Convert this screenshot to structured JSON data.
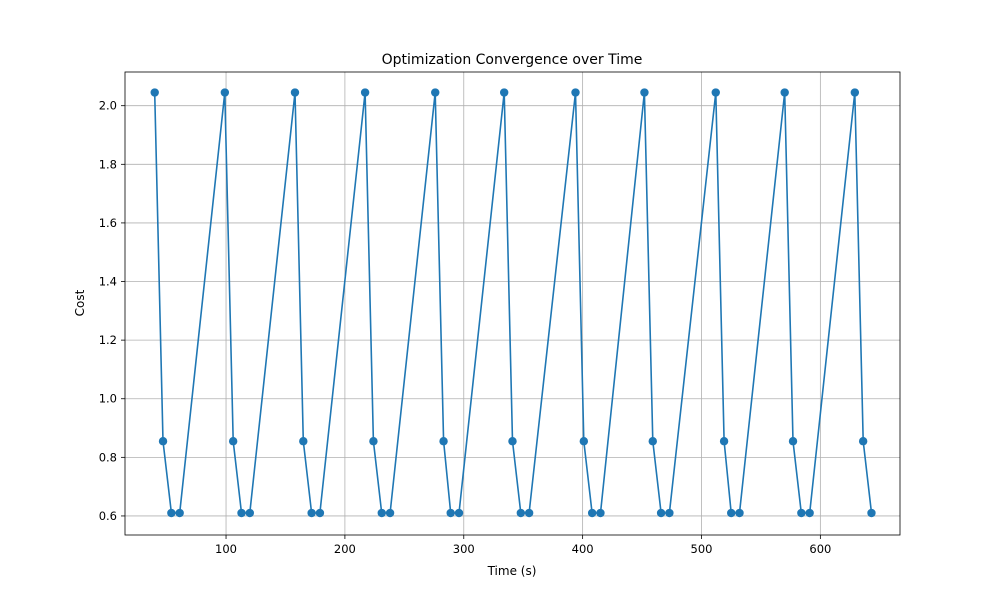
{
  "chart_data": {
    "type": "line",
    "title": "Optimization Convergence over Time",
    "xlabel": "Time (s)",
    "ylabel": "Cost",
    "xlim": [
      15,
      667
    ],
    "ylim": [
      0.535,
      2.115
    ],
    "xticks": [
      100,
      200,
      300,
      400,
      500,
      600
    ],
    "yticks": [
      0.6,
      0.8,
      1.0,
      1.2,
      1.4,
      1.6,
      1.8,
      2.0
    ],
    "grid": true,
    "line_color": "#1f77b4",
    "marker": "circle",
    "x": [
      40,
      47,
      54,
      61,
      99,
      106,
      113,
      120,
      158,
      165,
      172,
      179,
      217,
      224,
      231,
      238,
      276,
      283,
      289,
      296,
      334,
      341,
      348,
      355,
      394,
      401,
      408,
      415,
      452,
      459,
      466,
      473,
      512,
      519,
      525,
      532,
      570,
      577,
      584,
      591,
      629,
      636,
      643
    ],
    "y": [
      2.045,
      0.855,
      0.61,
      0.61,
      2.045,
      0.855,
      0.61,
      0.61,
      2.045,
      0.855,
      0.61,
      0.61,
      2.045,
      0.855,
      0.61,
      0.61,
      2.045,
      0.855,
      0.61,
      0.61,
      2.045,
      0.855,
      0.61,
      0.61,
      2.045,
      0.855,
      0.61,
      0.61,
      2.045,
      0.855,
      0.61,
      0.61,
      2.045,
      0.855,
      0.61,
      0.61,
      2.045,
      0.855,
      0.61,
      0.61,
      2.045,
      0.855,
      0.61
    ]
  }
}
